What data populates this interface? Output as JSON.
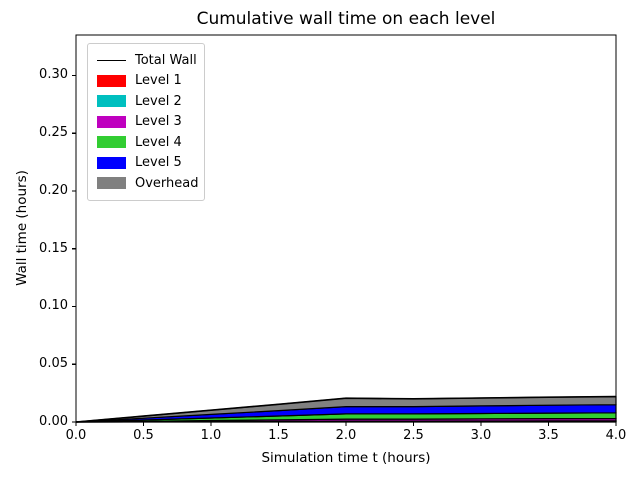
{
  "title": "Cumulative wall time on each level",
  "chart_data": {
    "type": "area",
    "stacked": true,
    "title": "Cumulative wall time on each level",
    "xlabel": "Simulation time t (hours)",
    "ylabel": "Wall time (hours)",
    "xlim": [
      0.0,
      4.0
    ],
    "ylim": [
      0.0,
      0.335
    ],
    "grid": false,
    "background": "#ffffff",
    "frame_color": "#000000",
    "legend_position": "upper-left",
    "xticks": [
      {
        "v": 0.0,
        "label": "0.0"
      },
      {
        "v": 0.5,
        "label": "0.5"
      },
      {
        "v": 1.0,
        "label": "1.0"
      },
      {
        "v": 1.5,
        "label": "1.5"
      },
      {
        "v": 2.0,
        "label": "2.0"
      },
      {
        "v": 2.5,
        "label": "2.5"
      },
      {
        "v": 3.0,
        "label": "3.0"
      },
      {
        "v": 3.5,
        "label": "3.5"
      },
      {
        "v": 4.0,
        "label": "4.0"
      }
    ],
    "yticks": [
      {
        "v": 0.0,
        "label": "0.00"
      },
      {
        "v": 0.05,
        "label": "0.05"
      },
      {
        "v": 0.1,
        "label": "0.10"
      },
      {
        "v": 0.15,
        "label": "0.15"
      },
      {
        "v": 0.2,
        "label": "0.20"
      },
      {
        "v": 0.25,
        "label": "0.25"
      },
      {
        "v": 0.3,
        "label": "0.30"
      }
    ],
    "x": [
      0.0,
      0.5,
      1.0,
      1.5,
      2.0,
      2.5,
      3.0,
      3.5,
      4.0
    ],
    "series": [
      {
        "name": "Level 1",
        "color": "#ff0000",
        "values": [
          0,
          0.0001,
          0.0002,
          0.0003,
          0.0004,
          0.0004,
          0.0004,
          0.0005,
          0.0005
        ]
      },
      {
        "name": "Level 2",
        "color": "#00bfbf",
        "values": [
          0,
          0.0001,
          0.0002,
          0.0003,
          0.0004,
          0.0004,
          0.0005,
          0.0005,
          0.0005
        ]
      },
      {
        "name": "Level 3",
        "color": "#bf00bf",
        "values": [
          0,
          0.0004,
          0.0009,
          0.0013,
          0.0017,
          0.0017,
          0.0018,
          0.0019,
          0.002
        ]
      },
      {
        "name": "Level 4",
        "color": "#32cd32",
        "values": [
          0,
          0.0011,
          0.0022,
          0.0033,
          0.0045,
          0.0045,
          0.0047,
          0.0048,
          0.005
        ]
      },
      {
        "name": "Level 5",
        "color": "#0000ff",
        "values": [
          0,
          0.0016,
          0.0031,
          0.0047,
          0.0063,
          0.0063,
          0.0065,
          0.0068,
          0.007
        ]
      },
      {
        "name": "Overhead",
        "color": "#808080",
        "values": [
          0,
          0.0018,
          0.0036,
          0.0054,
          0.0073,
          0.0068,
          0.0069,
          0.007,
          0.007
        ]
      }
    ],
    "series_edge_color": "#000000",
    "total_line": {
      "name": "Total Wall",
      "color": "#000000",
      "values": [
        0,
        0.0051,
        0.0102,
        0.0153,
        0.0206,
        0.0201,
        0.0208,
        0.0215,
        0.022
      ]
    },
    "legend": [
      {
        "label": "Total Wall",
        "color": "#000000",
        "type": "line"
      },
      {
        "label": "Level 1",
        "color": "#ff0000",
        "type": "patch"
      },
      {
        "label": "Level 2",
        "color": "#00bfbf",
        "type": "patch"
      },
      {
        "label": "Level 3",
        "color": "#bf00bf",
        "type": "patch"
      },
      {
        "label": "Level 4",
        "color": "#32cd32",
        "type": "patch"
      },
      {
        "label": "Level 5",
        "color": "#0000ff",
        "type": "patch"
      },
      {
        "label": "Overhead",
        "color": "#808080",
        "type": "patch"
      }
    ]
  }
}
